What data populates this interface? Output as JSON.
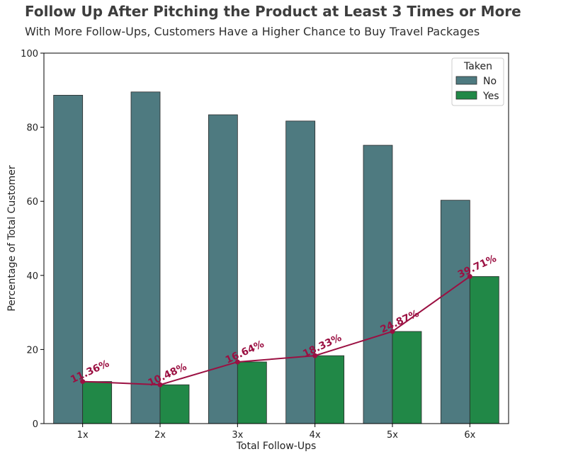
{
  "header": {
    "title": "Follow Up After Pitching the Product at Least 3 Times or More",
    "subtitle": "With More Follow-Ups, Customers Have a Higher Chance to Buy Travel Packages"
  },
  "colors": {
    "no": "#4e7a80",
    "yes": "#218847",
    "line": "#9b1042",
    "edge": "#2a2a2a"
  },
  "chart_data": {
    "type": "bar",
    "categories": [
      "1x",
      "2x",
      "3x",
      "4x",
      "5x",
      "6x"
    ],
    "series": [
      {
        "name": "No",
        "values": [
          88.64,
          89.52,
          83.36,
          81.67,
          75.13,
          60.29
        ]
      },
      {
        "name": "Yes",
        "values": [
          11.36,
          10.48,
          16.64,
          18.33,
          24.87,
          39.71
        ]
      }
    ],
    "line_series": {
      "values": [
        11.36,
        10.48,
        16.64,
        18.33,
        24.87,
        39.71
      ],
      "labels": [
        "11.36%",
        "10.48%",
        "16.64%",
        "18.33%",
        "24.87%",
        "39.71%"
      ]
    },
    "xlabel": "Total Follow-Ups",
    "ylabel": "Percentage of Total Customer",
    "ylim": [
      0,
      100
    ],
    "yticks": [
      "0",
      "20",
      "40",
      "60",
      "80",
      "100"
    ],
    "legend": {
      "title": "Taken",
      "placement": "top-right"
    },
    "grid": false
  }
}
